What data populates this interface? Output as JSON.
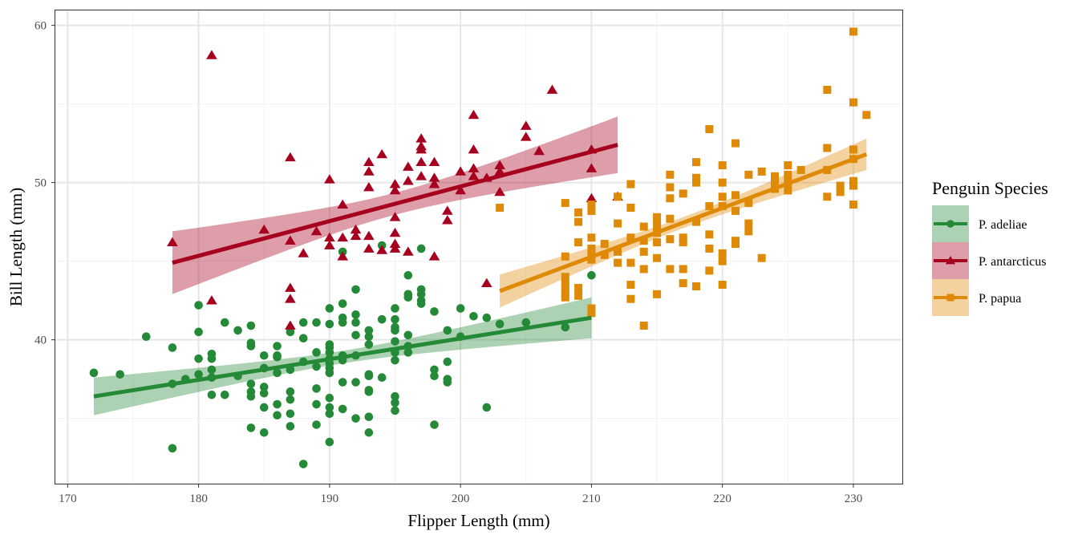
{
  "chart_data": {
    "type": "scatter",
    "xlabel": "Flipper Length (mm)",
    "ylabel": "Bill Length (mm)",
    "xlim": [
      169.0,
      233.8
    ],
    "ylim": [
      30.8,
      61.0
    ],
    "xticks": [
      170,
      180,
      190,
      200,
      210,
      220,
      230
    ],
    "xtick_labels": [
      "170",
      "180",
      "190",
      "200",
      "210",
      "220",
      "230"
    ],
    "yticks": [
      40,
      50,
      60
    ],
    "ytick_labels": [
      "40",
      "50",
      "60"
    ],
    "grid": true,
    "legend": {
      "title": "Penguin Species",
      "placement": "right"
    },
    "series": [
      {
        "name": "P. adeliae",
        "color": "#248a37",
        "marker": "circle",
        "fit": {
          "x": [
            172,
            210
          ],
          "y": [
            36.4,
            41.4
          ],
          "ci_halfwidth_ends": [
            1.2,
            1.3
          ],
          "ci_halfwidth_mid": 0.4
        },
        "points": [
          [
            172,
            37.9
          ],
          [
            174,
            37.8
          ],
          [
            176,
            40.2
          ],
          [
            178,
            39.5
          ],
          [
            178,
            37.2
          ],
          [
            178,
            33.1
          ],
          [
            179,
            37.5
          ],
          [
            180,
            42.2
          ],
          [
            180,
            40.5
          ],
          [
            180,
            38.8
          ],
          [
            180,
            37.8
          ],
          [
            181,
            39.1
          ],
          [
            181,
            38.8
          ],
          [
            181,
            38.1
          ],
          [
            181,
            37.6
          ],
          [
            181,
            36.5
          ],
          [
            182,
            41.1
          ],
          [
            182,
            36.5
          ],
          [
            183,
            40.6
          ],
          [
            183,
            37.7
          ],
          [
            184,
            40.9
          ],
          [
            184,
            39.8
          ],
          [
            184,
            39.6
          ],
          [
            184,
            37.2
          ],
          [
            184,
            36.7
          ],
          [
            184,
            36.4
          ],
          [
            184,
            34.4
          ],
          [
            185,
            39.0
          ],
          [
            185,
            38.2
          ],
          [
            185,
            37.0
          ],
          [
            185,
            36.6
          ],
          [
            185,
            35.7
          ],
          [
            185,
            34.1
          ],
          [
            186,
            39.6
          ],
          [
            186,
            39.0
          ],
          [
            186,
            38.9
          ],
          [
            186,
            37.9
          ],
          [
            186,
            35.9
          ],
          [
            186,
            35.2
          ],
          [
            187,
            40.5
          ],
          [
            187,
            38.1
          ],
          [
            187,
            36.7
          ],
          [
            187,
            36.2
          ],
          [
            187,
            35.3
          ],
          [
            187,
            34.5
          ],
          [
            188,
            41.1
          ],
          [
            188,
            40.1
          ],
          [
            188,
            38.6
          ],
          [
            188,
            32.1
          ],
          [
            189,
            41.1
          ],
          [
            189,
            39.2
          ],
          [
            189,
            38.3
          ],
          [
            189,
            36.9
          ],
          [
            189,
            35.9
          ],
          [
            189,
            34.6
          ],
          [
            190,
            42.0
          ],
          [
            190,
            41.0
          ],
          [
            190,
            39.7
          ],
          [
            190,
            39.5
          ],
          [
            190,
            39.2
          ],
          [
            190,
            38.8
          ],
          [
            190,
            38.5
          ],
          [
            190,
            38.2
          ],
          [
            190,
            37.9
          ],
          [
            190,
            36.3
          ],
          [
            190,
            35.7
          ],
          [
            190,
            35.3
          ],
          [
            190,
            33.5
          ],
          [
            191,
            45.6
          ],
          [
            191,
            42.3
          ],
          [
            191,
            41.4
          ],
          [
            191,
            41.1
          ],
          [
            191,
            39.0
          ],
          [
            191,
            38.7
          ],
          [
            191,
            37.3
          ],
          [
            191,
            35.6
          ],
          [
            192,
            43.2
          ],
          [
            192,
            41.6
          ],
          [
            192,
            41.1
          ],
          [
            192,
            40.3
          ],
          [
            192,
            39.0
          ],
          [
            192,
            37.3
          ],
          [
            192,
            35.0
          ],
          [
            193,
            40.6
          ],
          [
            193,
            40.2
          ],
          [
            193,
            39.7
          ],
          [
            193,
            37.8
          ],
          [
            193,
            37.7
          ],
          [
            193,
            36.8
          ],
          [
            193,
            36.7
          ],
          [
            193,
            35.1
          ],
          [
            193,
            34.1
          ],
          [
            194,
            46.0
          ],
          [
            194,
            41.3
          ],
          [
            194,
            37.6
          ],
          [
            195,
            42.0
          ],
          [
            195,
            41.3
          ],
          [
            195,
            40.8
          ],
          [
            195,
            40.6
          ],
          [
            195,
            39.9
          ],
          [
            195,
            39.2
          ],
          [
            195,
            38.7
          ],
          [
            195,
            36.4
          ],
          [
            195,
            36.0
          ],
          [
            195,
            35.5
          ],
          [
            196,
            44.1
          ],
          [
            196,
            42.9
          ],
          [
            196,
            42.7
          ],
          [
            196,
            40.3
          ],
          [
            196,
            39.6
          ],
          [
            196,
            39.2
          ],
          [
            197,
            45.8
          ],
          [
            197,
            43.2
          ],
          [
            197,
            42.9
          ],
          [
            197,
            42.5
          ],
          [
            197,
            42.3
          ],
          [
            198,
            41.8
          ],
          [
            198,
            38.1
          ],
          [
            198,
            37.7
          ],
          [
            198,
            34.6
          ],
          [
            199,
            40.6
          ],
          [
            199,
            38.6
          ],
          [
            199,
            37.5
          ],
          [
            199,
            37.3
          ],
          [
            200,
            42.0
          ],
          [
            200,
            40.2
          ],
          [
            201,
            41.5
          ],
          [
            202,
            41.4
          ],
          [
            202,
            35.7
          ],
          [
            203,
            41.0
          ],
          [
            205,
            41.1
          ],
          [
            208,
            40.8
          ],
          [
            210,
            44.1
          ]
        ]
      },
      {
        "name": "P. antarcticus",
        "color": "#a6001e",
        "marker": "triangle",
        "fit": {
          "x": [
            178,
            212
          ],
          "y": [
            44.9,
            52.4
          ],
          "ci_halfwidth_ends": [
            2.0,
            1.8
          ],
          "ci_halfwidth_mid": 0.7
        },
        "points": [
          [
            178,
            46.2
          ],
          [
            181,
            58.1
          ],
          [
            181,
            42.5
          ],
          [
            185,
            47.0
          ],
          [
            187,
            51.6
          ],
          [
            187,
            46.3
          ],
          [
            187,
            43.3
          ],
          [
            187,
            42.6
          ],
          [
            187,
            40.9
          ],
          [
            188,
            45.5
          ],
          [
            189,
            46.9
          ],
          [
            190,
            50.2
          ],
          [
            190,
            46.5
          ],
          [
            190,
            46.0
          ],
          [
            191,
            48.6
          ],
          [
            191,
            46.5
          ],
          [
            191,
            45.3
          ],
          [
            192,
            47.0
          ],
          [
            192,
            46.6
          ],
          [
            193,
            51.3
          ],
          [
            193,
            50.7
          ],
          [
            193,
            49.7
          ],
          [
            193,
            46.6
          ],
          [
            193,
            45.8
          ],
          [
            194,
            51.8
          ],
          [
            194,
            45.7
          ],
          [
            195,
            49.9
          ],
          [
            195,
            49.5
          ],
          [
            195,
            47.8
          ],
          [
            195,
            46.8
          ],
          [
            195,
            46.1
          ],
          [
            195,
            45.8
          ],
          [
            196,
            51.0
          ],
          [
            196,
            50.1
          ],
          [
            196,
            45.6
          ],
          [
            197,
            52.8
          ],
          [
            197,
            52.3
          ],
          [
            197,
            52.1
          ],
          [
            197,
            51.3
          ],
          [
            197,
            50.4
          ],
          [
            198,
            51.3
          ],
          [
            198,
            50.3
          ],
          [
            198,
            49.9
          ],
          [
            198,
            45.3
          ],
          [
            199,
            48.2
          ],
          [
            199,
            47.6
          ],
          [
            200,
            50.7
          ],
          [
            200,
            49.5
          ],
          [
            201,
            54.3
          ],
          [
            201,
            52.1
          ],
          [
            201,
            50.9
          ],
          [
            201,
            50.4
          ],
          [
            202,
            50.3
          ],
          [
            202,
            43.6
          ],
          [
            203,
            51.1
          ],
          [
            203,
            50.7
          ],
          [
            203,
            49.4
          ],
          [
            205,
            53.6
          ],
          [
            205,
            52.9
          ],
          [
            206,
            52.0
          ],
          [
            207,
            55.9
          ],
          [
            210,
            52.1
          ],
          [
            210,
            50.9
          ],
          [
            210,
            49.0
          ],
          [
            212,
            49.1
          ]
        ]
      },
      {
        "name": "P. papua",
        "color": "#df8a06",
        "marker": "square",
        "fit": {
          "x": [
            203,
            231
          ],
          "y": [
            43.1,
            51.8
          ],
          "ci_halfwidth_ends": [
            1.05,
            1.0
          ],
          "ci_halfwidth_mid": 0.35
        },
        "points": [
          [
            203,
            48.4
          ],
          [
            208,
            48.7
          ],
          [
            208,
            45.3
          ],
          [
            208,
            44.0
          ],
          [
            208,
            43.6
          ],
          [
            208,
            43.3
          ],
          [
            208,
            42.9
          ],
          [
            208,
            42.7
          ],
          [
            209,
            48.1
          ],
          [
            209,
            47.5
          ],
          [
            209,
            46.2
          ],
          [
            209,
            43.3
          ],
          [
            209,
            42.8
          ],
          [
            210,
            48.6
          ],
          [
            210,
            48.2
          ],
          [
            210,
            46.5
          ],
          [
            210,
            45.8
          ],
          [
            210,
            45.5
          ],
          [
            210,
            45.1
          ],
          [
            210,
            42.0
          ],
          [
            210,
            41.7
          ],
          [
            211,
            46.1
          ],
          [
            211,
            45.4
          ],
          [
            212,
            49.1
          ],
          [
            212,
            47.4
          ],
          [
            212,
            45.6
          ],
          [
            212,
            44.9
          ],
          [
            213,
            49.9
          ],
          [
            213,
            48.4
          ],
          [
            213,
            46.5
          ],
          [
            213,
            44.9
          ],
          [
            213,
            43.5
          ],
          [
            213,
            42.6
          ],
          [
            214,
            47.2
          ],
          [
            214,
            46.3
          ],
          [
            214,
            45.6
          ],
          [
            214,
            44.5
          ],
          [
            214,
            40.9
          ],
          [
            215,
            47.8
          ],
          [
            215,
            47.3
          ],
          [
            215,
            46.8
          ],
          [
            215,
            46.2
          ],
          [
            215,
            45.2
          ],
          [
            215,
            42.9
          ],
          [
            216,
            50.5
          ],
          [
            216,
            49.7
          ],
          [
            216,
            49.0
          ],
          [
            216,
            47.7
          ],
          [
            216,
            46.4
          ],
          [
            216,
            44.5
          ],
          [
            217,
            49.3
          ],
          [
            217,
            46.5
          ],
          [
            217,
            46.2
          ],
          [
            217,
            44.5
          ],
          [
            217,
            43.6
          ],
          [
            218,
            51.3
          ],
          [
            218,
            50.3
          ],
          [
            218,
            50.0
          ],
          [
            218,
            47.5
          ],
          [
            218,
            43.4
          ],
          [
            219,
            53.4
          ],
          [
            219,
            48.5
          ],
          [
            219,
            46.7
          ],
          [
            219,
            45.8
          ],
          [
            219,
            44.4
          ],
          [
            220,
            51.1
          ],
          [
            220,
            50.0
          ],
          [
            220,
            49.1
          ],
          [
            220,
            48.5
          ],
          [
            220,
            45.5
          ],
          [
            220,
            45.0
          ],
          [
            220,
            43.5
          ],
          [
            221,
            52.5
          ],
          [
            221,
            49.2
          ],
          [
            221,
            48.2
          ],
          [
            221,
            46.3
          ],
          [
            221,
            46.1
          ],
          [
            222,
            50.5
          ],
          [
            222,
            48.7
          ],
          [
            222,
            47.4
          ],
          [
            222,
            46.9
          ],
          [
            223,
            50.7
          ],
          [
            223,
            45.2
          ],
          [
            224,
            50.4
          ],
          [
            224,
            50.0
          ],
          [
            224,
            49.6
          ],
          [
            225,
            51.1
          ],
          [
            225,
            50.5
          ],
          [
            225,
            50.0
          ],
          [
            225,
            49.5
          ],
          [
            226,
            50.8
          ],
          [
            228,
            55.9
          ],
          [
            228,
            52.2
          ],
          [
            228,
            50.8
          ],
          [
            228,
            49.1
          ],
          [
            229,
            49.8
          ],
          [
            229,
            49.4
          ],
          [
            230,
            59.6
          ],
          [
            230,
            55.1
          ],
          [
            230,
            52.1
          ],
          [
            230,
            51.5
          ],
          [
            230,
            50.1
          ],
          [
            230,
            49.8
          ],
          [
            230,
            48.6
          ],
          [
            231,
            54.3
          ]
        ]
      }
    ]
  }
}
